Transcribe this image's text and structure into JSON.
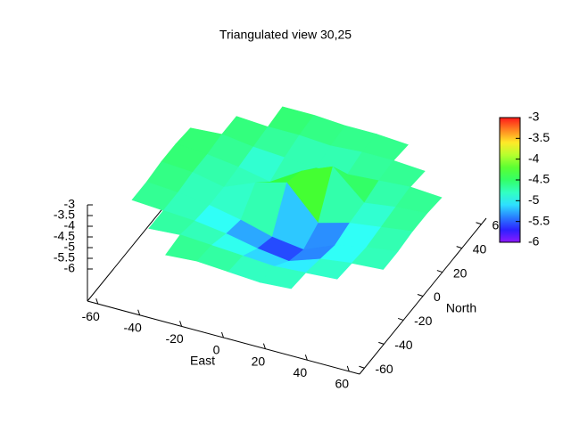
{
  "chart_data": {
    "type": "surface",
    "title": "Triangulated view 30,25",
    "xlabel": "East",
    "ylabel": "North",
    "x": [
      -60,
      -45,
      -30,
      -15,
      0,
      15,
      30,
      45,
      60
    ],
    "y": [
      -60,
      -45,
      -30,
      -15,
      0,
      15,
      30,
      45,
      60
    ],
    "z": [
      [
        null,
        null,
        -4.7,
        -4.6,
        -4.7,
        -4.8,
        -4.7,
        null,
        null
      ],
      [
        null,
        -4.7,
        -4.6,
        -4.7,
        -4.8,
        -4.9,
        -4.8,
        -4.7,
        null
      ],
      [
        -4.6,
        -4.7,
        -4.8,
        -5.0,
        -5.3,
        -5.5,
        -5.0,
        -4.8,
        -4.7
      ],
      [
        -4.6,
        -4.7,
        -4.9,
        -5.2,
        -5.6,
        -5.8,
        -5.2,
        -4.9,
        -4.7
      ],
      [
        -4.5,
        -4.6,
        -4.9,
        -4.3,
        -3.9,
        -5.4,
        -5.0,
        -4.8,
        -4.6
      ],
      [
        -4.5,
        -4.6,
        -4.8,
        -5.1,
        -4.2,
        -3.6,
        -4.9,
        -4.7,
        -4.6
      ],
      [
        -4.6,
        -4.5,
        -4.7,
        -4.8,
        -4.9,
        -4.8,
        -4.7,
        -4.6,
        -4.7
      ],
      [
        null,
        -4.5,
        -4.6,
        -4.6,
        -4.7,
        -4.6,
        -4.6,
        -4.7,
        null
      ],
      [
        null,
        null,
        -4.5,
        -4.5,
        -4.6,
        -4.6,
        -4.7,
        null,
        null
      ]
    ],
    "xlim": [
      -65,
      65
    ],
    "ylim": [
      -65,
      65
    ],
    "zlim": [
      -7.5,
      -3
    ],
    "xticks": [
      -60,
      -40,
      -20,
      0,
      20,
      40,
      60
    ],
    "yticks": [
      -60,
      -40,
      -20,
      0,
      20,
      40,
      60
    ],
    "zticks": [
      -3,
      -3.5,
      -4,
      -4.5,
      -5,
      -5.5,
      -6
    ],
    "cblim": [
      -6,
      -3
    ],
    "cbticks": [
      -3,
      -3.5,
      -4,
      -4.5,
      -5,
      -5.5,
      -6
    ],
    "palette": "rainbow"
  }
}
